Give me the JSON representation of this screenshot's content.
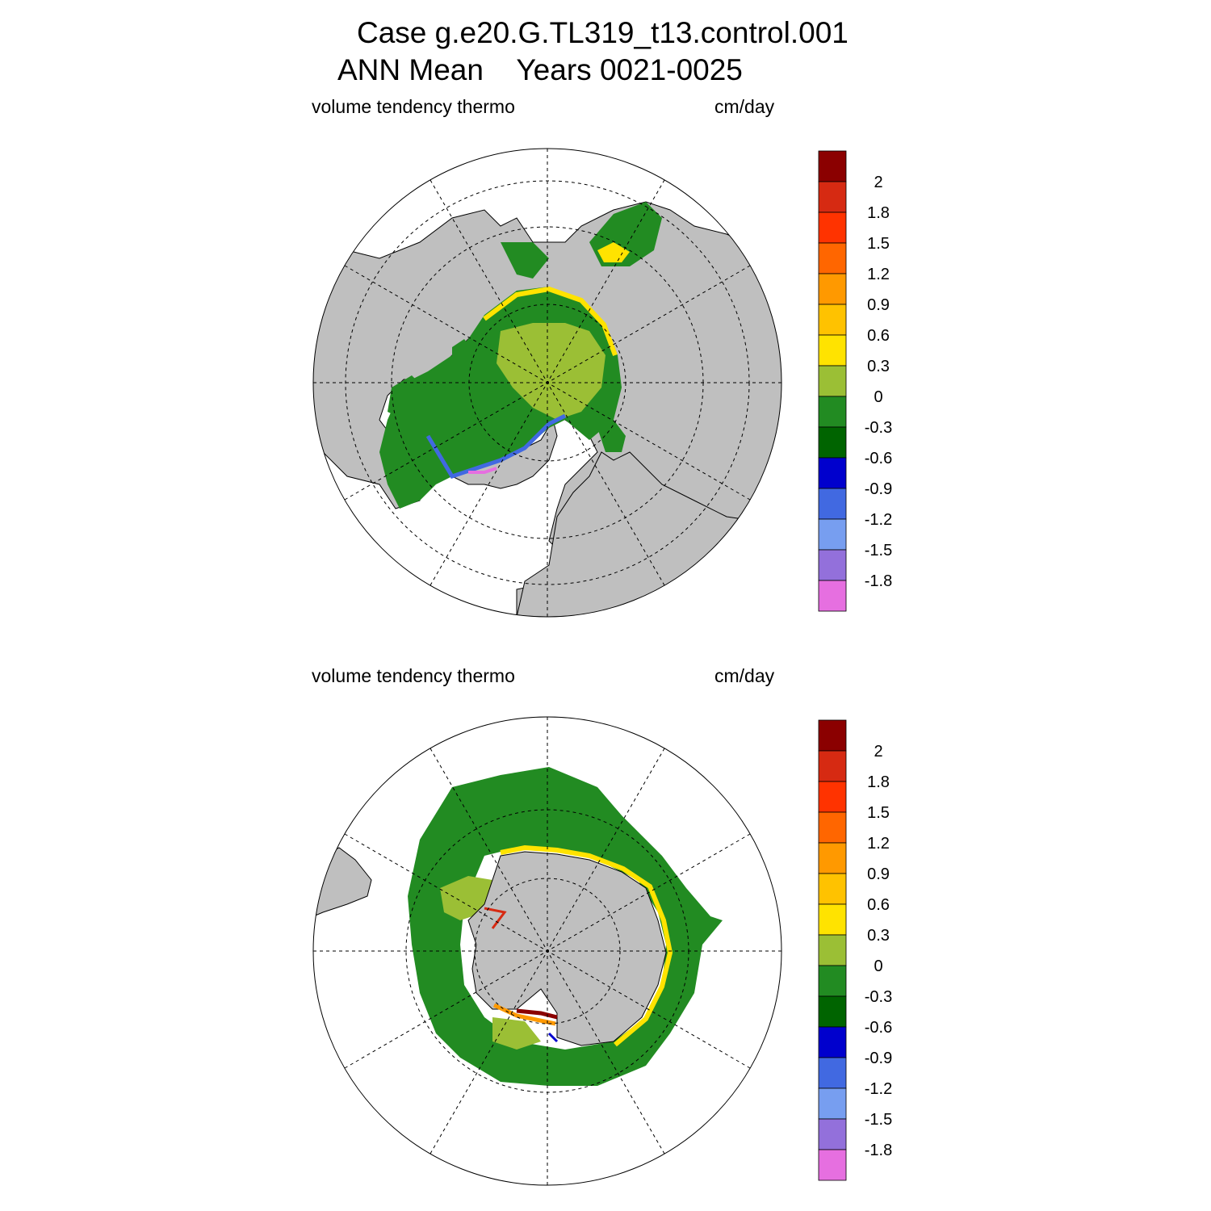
{
  "title": {
    "line1": "Case g.e20.G.TL319_t13.control.001",
    "line2": "ANN Mean    Years 0021-0025"
  },
  "panels": [
    {
      "hemisphere": "north",
      "left_label": "volume tendency thermo",
      "right_label": "cm/day"
    },
    {
      "hemisphere": "south",
      "left_label": "volume tendency thermo",
      "right_label": "cm/day"
    }
  ],
  "colorbar": {
    "labels": [
      "2",
      "1.8",
      "1.5",
      "1.2",
      "0.9",
      "0.6",
      "0.3",
      "0",
      "-0.3",
      "-0.6",
      "-0.9",
      "-1.2",
      "-1.5",
      "-1.8"
    ],
    "colors": [
      "#8b0000",
      "#d62a12",
      "#ff3300",
      "#ff6600",
      "#ff9900",
      "#ffc200",
      "#ffe300",
      "#9bbf35",
      "#228b22",
      "#006400",
      "#0000cd",
      "#4169e1",
      "#779ef0",
      "#9370db",
      "#e66fe0"
    ]
  },
  "colors": {
    "land": "#bfbfbf",
    "ocean_no_ice": "#ffffff",
    "green": "#228b22",
    "light_green": "#9bbf35",
    "dark_green": "#006400",
    "yellow": "#ffe300",
    "orange": "#ff9900",
    "red": "#d62a12",
    "dark_red": "#8b0000",
    "blue": "#0000cd",
    "royal_blue": "#4169e1",
    "magenta": "#e66fe0"
  }
}
